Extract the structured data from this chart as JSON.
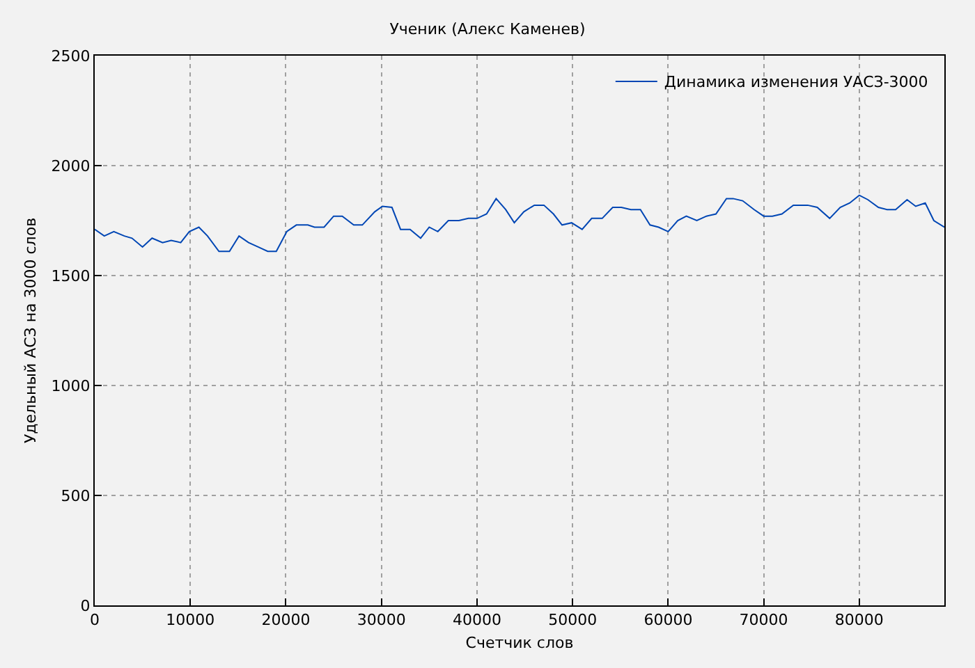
{
  "chart_data": {
    "type": "line",
    "title": "Ученик (Алекс Каменев)",
    "xlabel": "Счетчик слов",
    "ylabel": "Удельный АСЗ на 3000 слов",
    "x": [
      0,
      1000,
      2000,
      3100,
      3900,
      5000,
      6000,
      7100,
      8000,
      9000,
      9900,
      10900,
      11800,
      13000,
      14100,
      15100,
      16100,
      17100,
      18100,
      19000,
      20100,
      21100,
      22300,
      23000,
      24000,
      25000,
      25900,
      27100,
      28000,
      29300,
      30100,
      31100,
      32000,
      33000,
      34100,
      35000,
      35900,
      37000,
      38100,
      39100,
      40000,
      41000,
      42000,
      43000,
      43900,
      44900,
      46000,
      47000,
      48000,
      48900,
      49900,
      51000,
      52000,
      53100,
      54200,
      55100,
      56100,
      57100,
      58100,
      59000,
      60000,
      61000,
      61900,
      63000,
      64000,
      65000,
      66100,
      66800,
      67800,
      69000,
      70000,
      70900,
      71900,
      73100,
      74600,
      75600,
      76900,
      78000,
      79000,
      80000,
      80900,
      82000,
      82900,
      83800,
      85000,
      85900,
      86900,
      87800,
      88900
    ],
    "series": [
      {
        "name": "Динамика изменения УАСЗ-3000",
        "color": "#0046b4",
        "values": [
          1710,
          1680,
          1700,
          1680,
          1670,
          1630,
          1670,
          1650,
          1660,
          1650,
          1700,
          1720,
          1680,
          1610,
          1610,
          1680,
          1650,
          1630,
          1610,
          1610,
          1700,
          1730,
          1730,
          1720,
          1720,
          1770,
          1770,
          1730,
          1730,
          1790,
          1815,
          1810,
          1710,
          1710,
          1670,
          1720,
          1700,
          1750,
          1750,
          1760,
          1760,
          1780,
          1850,
          1800,
          1740,
          1790,
          1820,
          1820,
          1780,
          1730,
          1740,
          1710,
          1760,
          1760,
          1810,
          1810,
          1800,
          1800,
          1730,
          1720,
          1700,
          1750,
          1770,
          1750,
          1770,
          1780,
          1850,
          1850,
          1840,
          1800,
          1770,
          1770,
          1780,
          1820,
          1820,
          1810,
          1760,
          1810,
          1830,
          1865,
          1845,
          1810,
          1800,
          1800,
          1845,
          1815,
          1830,
          1750,
          1720
        ]
      }
    ],
    "xlim": [
      0,
      88900
    ],
    "ylim": [
      0,
      2500
    ],
    "xticks": [
      0,
      10000,
      20000,
      30000,
      40000,
      50000,
      60000,
      70000,
      80000
    ],
    "yticks": [
      0,
      500,
      1000,
      1500,
      2000,
      2500
    ],
    "grid": true,
    "legend": "top right",
    "marker": "none",
    "line_style": "solid"
  }
}
